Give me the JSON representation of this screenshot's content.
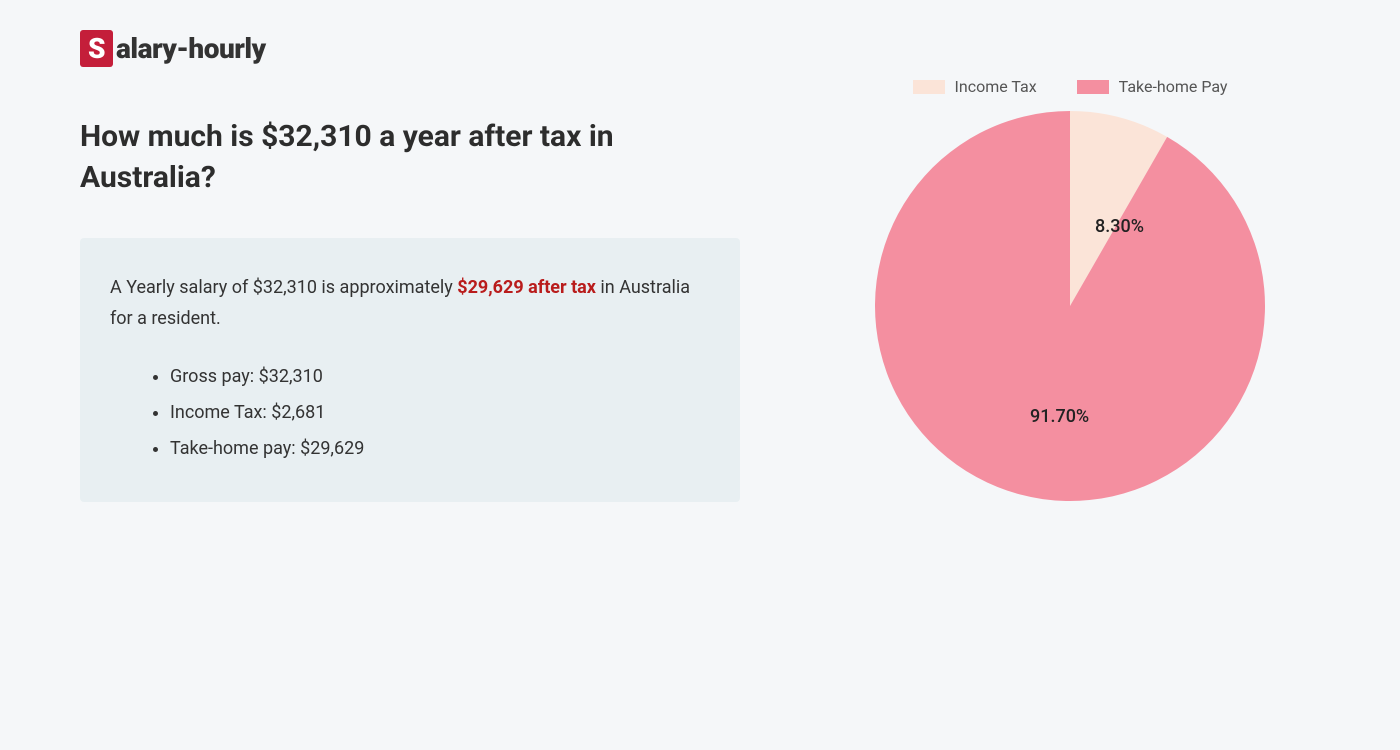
{
  "logo": {
    "s": "S",
    "rest": "alary-hourly"
  },
  "title": "How much is $32,310 a year after tax in Australia?",
  "summary": {
    "pre": "A Yearly salary of $32,310 is approximately ",
    "highlight": "$29,629 after tax",
    "post": " in Australia for a resident.",
    "items": [
      "Gross pay: $32,310",
      "Income Tax: $2,681",
      "Take-home pay: $29,629"
    ]
  },
  "chart": {
    "type": "pie",
    "size": 390,
    "slices": [
      {
        "label": "Income Tax",
        "value": 8.3,
        "display": "8.30%",
        "color": "#fbe4d8"
      },
      {
        "label": "Take-home Pay",
        "value": 91.7,
        "display": "91.70%",
        "color": "#f48fa0"
      }
    ],
    "start_angle_deg": 0,
    "background_color": "#f5f7f9",
    "label_fontsize": 18,
    "label_color": "#222222",
    "legend_fontsize": 16,
    "legend_color": "#555555",
    "swatch_width": 32,
    "swatch_height": 14
  },
  "box": {
    "background": "#e8eff2",
    "highlight_color": "#b91c1c"
  }
}
